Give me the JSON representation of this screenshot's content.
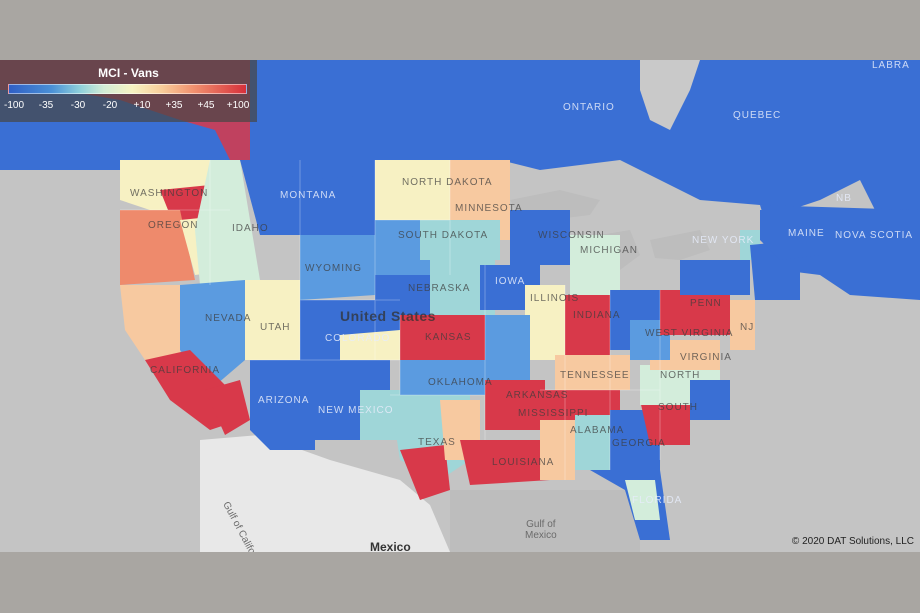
{
  "legend": {
    "title": "MCI - Vans",
    "ticks": [
      "-100",
      "-35",
      "-30",
      "-20",
      "+10",
      "+35",
      "+45",
      "+100"
    ]
  },
  "labels": {
    "labrador": "LABRA",
    "ontario": "ONTARIO",
    "quebec": "QUEBEC",
    "nb": "NB",
    "nova_scotia": "NOVA SCOTIA",
    "maine": "MAINE",
    "washington": "WASHINGTON",
    "montana": "MONTANA",
    "north_dakota": "NORTH DAKOTA",
    "minnesota": "MINNESOTA",
    "oregon": "OREGON",
    "idaho": "IDAHO",
    "south_dakota": "SOUTH DAKOTA",
    "wisconsin": "WISCONSIN",
    "michigan": "MICHIGAN",
    "new_york": "NEW YORK",
    "wyoming": "WYOMING",
    "nebraska": "NEBRASKA",
    "iowa": "IOWA",
    "illinois": "ILLINOIS",
    "indiana": "INDIANA",
    "pennsylvania": "PENN",
    "nevada": "NEVADA",
    "utah": "UTAH",
    "colorado": "COLORADO",
    "kansas": "KANSAS",
    "west_virginia": "WEST VIRGINIA",
    "virginia": "VIRGINIA",
    "nj": "NJ",
    "california": "CALIFORNIA",
    "arizona": "ARIZONA",
    "new_mexico": "NEW MEXICO",
    "oklahoma": "OKLAHOMA",
    "arkansas": "ARKANSAS",
    "tennessee": "TENNESSEE",
    "north_carolina": "NORTH",
    "south_carolina": "SOUTH",
    "mississippi": "MISSISSIPPI",
    "alabama": "ALABAMA",
    "georgia": "GEORGIA",
    "texas": "TEXAS",
    "louisiana": "LOUISIANA",
    "florida": "FLORIDA",
    "united_states": "United States",
    "mexico": "Mexico",
    "gulf_mexico": "Gulf of\nMexico",
    "gulf_california": "Gulf of California"
  },
  "copyright": "© 2020 DAT Solutions, LLC",
  "colors": {
    "very_low": "#3a6fd4",
    "low": "#5b9be0",
    "mid_low": "#9fd6d8",
    "neutral_low": "#d3eddb",
    "neutral_high": "#f7f1c3",
    "mid_high": "#f7c9a0",
    "high": "#ee8a6c",
    "very_high": "#d8394a"
  }
}
